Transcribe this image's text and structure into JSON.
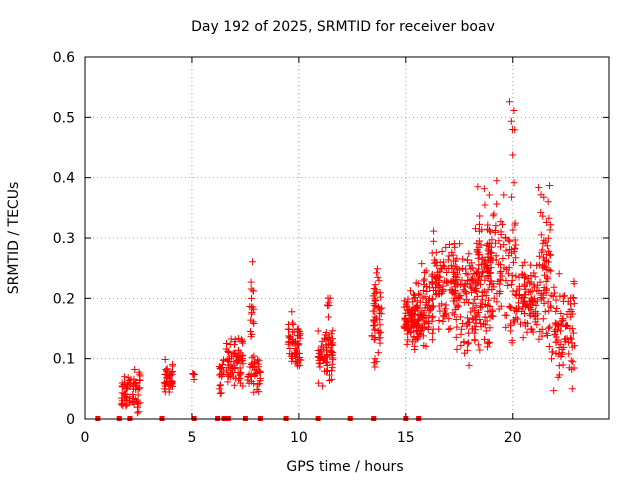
{
  "chart_data": {
    "type": "scatter",
    "title": "Day 192 of 2025, SRMTID for receiver boav",
    "xlabel": "GPS time / hours",
    "ylabel": "SRMTID / TECUs",
    "xlim": [
      0,
      24.5
    ],
    "ylim": [
      0,
      0.6
    ],
    "xticks": [
      "0",
      "5",
      "10",
      "15",
      "20"
    ],
    "xtick_values": [
      0,
      5,
      10,
      15,
      20
    ],
    "yticks": [
      "0",
      "0.1",
      "0.2",
      "0.3",
      "0.4",
      "0.5",
      "0.6"
    ],
    "ytick_values": [
      0,
      0.1,
      0.2,
      0.3,
      0.4,
      0.5,
      0.6
    ],
    "grid": true,
    "marker": "+",
    "color": "#ff0000",
    "zero_markers_x": [
      0.6,
      1.6,
      2.1,
      3.6,
      5.1,
      6.2,
      6.5,
      6.7,
      7.5,
      8.2,
      9.4,
      10.9,
      12.4,
      13.5,
      15.0,
      15.6
    ],
    "clusters": [
      {
        "x_range": [
          1.7,
          2.6
        ],
        "y_mean": 0.045,
        "y_spread": 0.018,
        "count": 70
      },
      {
        "x_range": [
          3.7,
          4.1
        ],
        "y_mean": 0.068,
        "y_spread": 0.014,
        "count": 40
      },
      {
        "x_range": [
          5.0,
          5.2
        ],
        "y_mean": 0.07,
        "y_spread": 0.006,
        "count": 5
      },
      {
        "x_range": [
          6.2,
          6.5
        ],
        "y_mean": 0.08,
        "y_spread": 0.02,
        "count": 18
      },
      {
        "x_range": [
          6.6,
          7.0
        ],
        "y_mean": 0.095,
        "y_spread": 0.025,
        "count": 35
      },
      {
        "x_range": [
          7.0,
          7.4
        ],
        "y_mean": 0.1,
        "y_spread": 0.025,
        "count": 40
      },
      {
        "x_range": [
          7.6,
          8.2
        ],
        "y_mean": 0.075,
        "y_spread": 0.02,
        "count": 40
      },
      {
        "x_range": [
          7.7,
          7.9
        ],
        "y_mean": 0.19,
        "y_spread": 0.035,
        "count": 18
      },
      {
        "x_range": [
          9.5,
          10.1
        ],
        "y_mean": 0.12,
        "y_spread": 0.028,
        "count": 60
      },
      {
        "x_range": [
          10.9,
          11.6
        ],
        "y_mean": 0.11,
        "y_spread": 0.03,
        "count": 70
      },
      {
        "x_range": [
          11.3,
          11.5
        ],
        "y_mean": 0.195,
        "y_spread": 0.006,
        "count": 6
      },
      {
        "x_range": [
          13.4,
          13.9
        ],
        "y_mean": 0.17,
        "y_spread": 0.04,
        "count": 55
      },
      {
        "x_range": [
          14.9,
          15.6
        ],
        "y_mean": 0.165,
        "y_spread": 0.025,
        "count": 80
      },
      {
        "x_range": [
          15.4,
          16.3
        ],
        "y_mean": 0.18,
        "y_spread": 0.035,
        "count": 80
      },
      {
        "x_range": [
          16.2,
          17.4
        ],
        "y_mean": 0.22,
        "y_spread": 0.045,
        "count": 110
      },
      {
        "x_range": [
          17.3,
          18.3
        ],
        "y_mean": 0.2,
        "y_spread": 0.05,
        "count": 100
      },
      {
        "x_range": [
          18.3,
          19.0
        ],
        "y_mean": 0.23,
        "y_spread": 0.07,
        "count": 90
      },
      {
        "x_range": [
          18.8,
          20.2
        ],
        "y_mean": 0.25,
        "y_spread": 0.07,
        "count": 120
      },
      {
        "x_range": [
          19.8,
          20.1
        ],
        "y_mean": 0.5,
        "y_spread": 0.04,
        "count": 6
      },
      {
        "x_range": [
          20.1,
          21.2
        ],
        "y_mean": 0.2,
        "y_spread": 0.04,
        "count": 90
      },
      {
        "x_range": [
          21.2,
          21.8
        ],
        "y_mean": 0.25,
        "y_spread": 0.08,
        "count": 70
      },
      {
        "x_range": [
          21.8,
          22.9
        ],
        "y_mean": 0.15,
        "y_spread": 0.05,
        "count": 90
      }
    ]
  }
}
